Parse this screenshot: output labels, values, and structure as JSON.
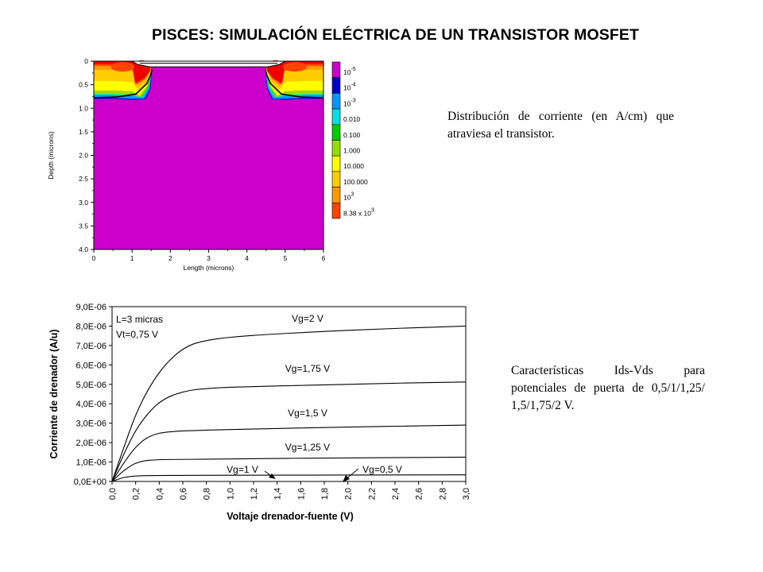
{
  "title": "PISCES: SIMULACIÓN ELÉCTRICA DE UN TRANSISTOR MOSFET",
  "note_top": "Distribución de corriente (en A/cm) que atraviesa el transistor.",
  "note_bottom": "Características Ids-Vds para potenciales de puerta de 0,5/1/1,25/ 1,5/1,75/2 V.",
  "chart_data": [
    {
      "type": "heatmap",
      "xlabel": "Length (microns)",
      "ylabel": "Depth (microns)",
      "xlim": [
        0,
        6
      ],
      "ylim": [
        4.0,
        0
      ],
      "x_ticks": [
        "0",
        "1",
        "2",
        "3",
        "4",
        "5",
        "6"
      ],
      "y_ticks": [
        "0",
        "0.5",
        "1.0",
        "1.5",
        "2.0",
        "2.5",
        "3.0",
        "3.5",
        "4.0"
      ],
      "colorbar": {
        "labels": [
          {
            "base": "10",
            "exp": "-5"
          },
          {
            "base": "10",
            "exp": "-4"
          },
          {
            "base": "10",
            "exp": "-3"
          },
          {
            "base": "0.010",
            "exp": ""
          },
          {
            "base": "0.100",
            "exp": ""
          },
          {
            "base": "1.000",
            "exp": ""
          },
          {
            "base": "10.000",
            "exp": ""
          },
          {
            "base": "100.000",
            "exp": ""
          },
          {
            "base": "10",
            "exp": "3"
          },
          {
            "base": "8.38 x 10",
            "exp": "3"
          }
        ],
        "colors": [
          "#cc00cc",
          "#0000cc",
          "#0099ff",
          "#00e0e0",
          "#00cc00",
          "#99dd00",
          "#ffff00",
          "#ffcc00",
          "#ff9900",
          "#ff4400",
          "#ee0000"
        ]
      }
    },
    {
      "type": "line",
      "xlabel": "Voltaje drenador-fuente (V)",
      "ylabel": "Corriente de drenador (A/u)",
      "xlim": [
        0,
        3.0
      ],
      "ylim": [
        0,
        9e-06
      ],
      "x_ticks": [
        "0,0",
        "0,2",
        "0,4",
        "0,6",
        "0,8",
        "1,0",
        "1,2",
        "1,4",
        "1,6",
        "1,8",
        "2,0",
        "2,2",
        "2,4",
        "2,6",
        "2,8",
        "3,0"
      ],
      "y_ticks": [
        "0,0E+00",
        "1,0E-06",
        "2,0E-06",
        "3,0E-06",
        "4,0E-06",
        "5,0E-06",
        "6,0E-06",
        "7,0E-06",
        "8,0E-06",
        "9,0E-06"
      ],
      "params": [
        "L=3 micras",
        "Vt=0,75 V"
      ],
      "series": [
        {
          "name": "Vg=2 V",
          "x": [
            0,
            0.1,
            0.2,
            0.3,
            0.4,
            0.5,
            0.6,
            0.7,
            0.8,
            0.9,
            1.0,
            1.2,
            1.5,
            2.0,
            2.5,
            3.0
          ],
          "values": [
            0,
            1.75e-06,
            3.4e-06,
            4.65e-06,
            5.6e-06,
            6.3e-06,
            6.8e-06,
            7.1e-06,
            7.25e-06,
            7.35e-06,
            7.42e-06,
            7.52e-06,
            7.63e-06,
            7.78e-06,
            7.9e-06,
            8e-06
          ]
        },
        {
          "name": "Vg=1,75 V",
          "x": [
            0,
            0.1,
            0.2,
            0.3,
            0.4,
            0.5,
            0.6,
            0.7,
            0.8,
            0.9,
            1.0,
            1.5,
            2.0,
            2.5,
            3.0
          ],
          "values": [
            0,
            1.4e-06,
            2.6e-06,
            3.45e-06,
            4.05e-06,
            4.4e-06,
            4.6e-06,
            4.72e-06,
            4.78e-06,
            4.82e-06,
            4.85e-06,
            4.93e-06,
            5e-06,
            5.07e-06,
            5.12e-06
          ]
        },
        {
          "name": "Vg=1,5 V",
          "x": [
            0,
            0.1,
            0.2,
            0.3,
            0.4,
            0.5,
            0.6,
            0.7,
            0.8,
            1.0,
            1.5,
            2.0,
            2.5,
            3.0
          ],
          "values": [
            0,
            9.5e-07,
            1.75e-06,
            2.25e-06,
            2.48e-06,
            2.56e-06,
            2.6e-06,
            2.62e-06,
            2.64e-06,
            2.67e-06,
            2.74e-06,
            2.8e-06,
            2.85e-06,
            2.9e-06
          ]
        },
        {
          "name": "Vg=1,25 V",
          "x": [
            0,
            0.1,
            0.2,
            0.3,
            0.4,
            0.5,
            0.7,
            1.0,
            1.5,
            2.0,
            2.5,
            3.0
          ],
          "values": [
            0,
            5.5e-07,
            9.3e-07,
            1.08e-06,
            1.12e-06,
            1.13e-06,
            1.14e-06,
            1.16e-06,
            1.19e-06,
            1.21e-06,
            1.23e-06,
            1.25e-06
          ]
        },
        {
          "name": "Vg=1 V",
          "x": [
            0,
            0.1,
            0.2,
            0.3,
            0.5,
            1.0,
            2.0,
            3.0
          ],
          "values": [
            0,
            2e-07,
            2.8e-07,
            3e-07,
            3.1e-07,
            3.2e-07,
            3.3e-07,
            3.4e-07
          ]
        },
        {
          "name": "Vg=0,5 V",
          "x": [
            0,
            3.0
          ],
          "values": [
            0,
            0
          ]
        }
      ]
    }
  ]
}
